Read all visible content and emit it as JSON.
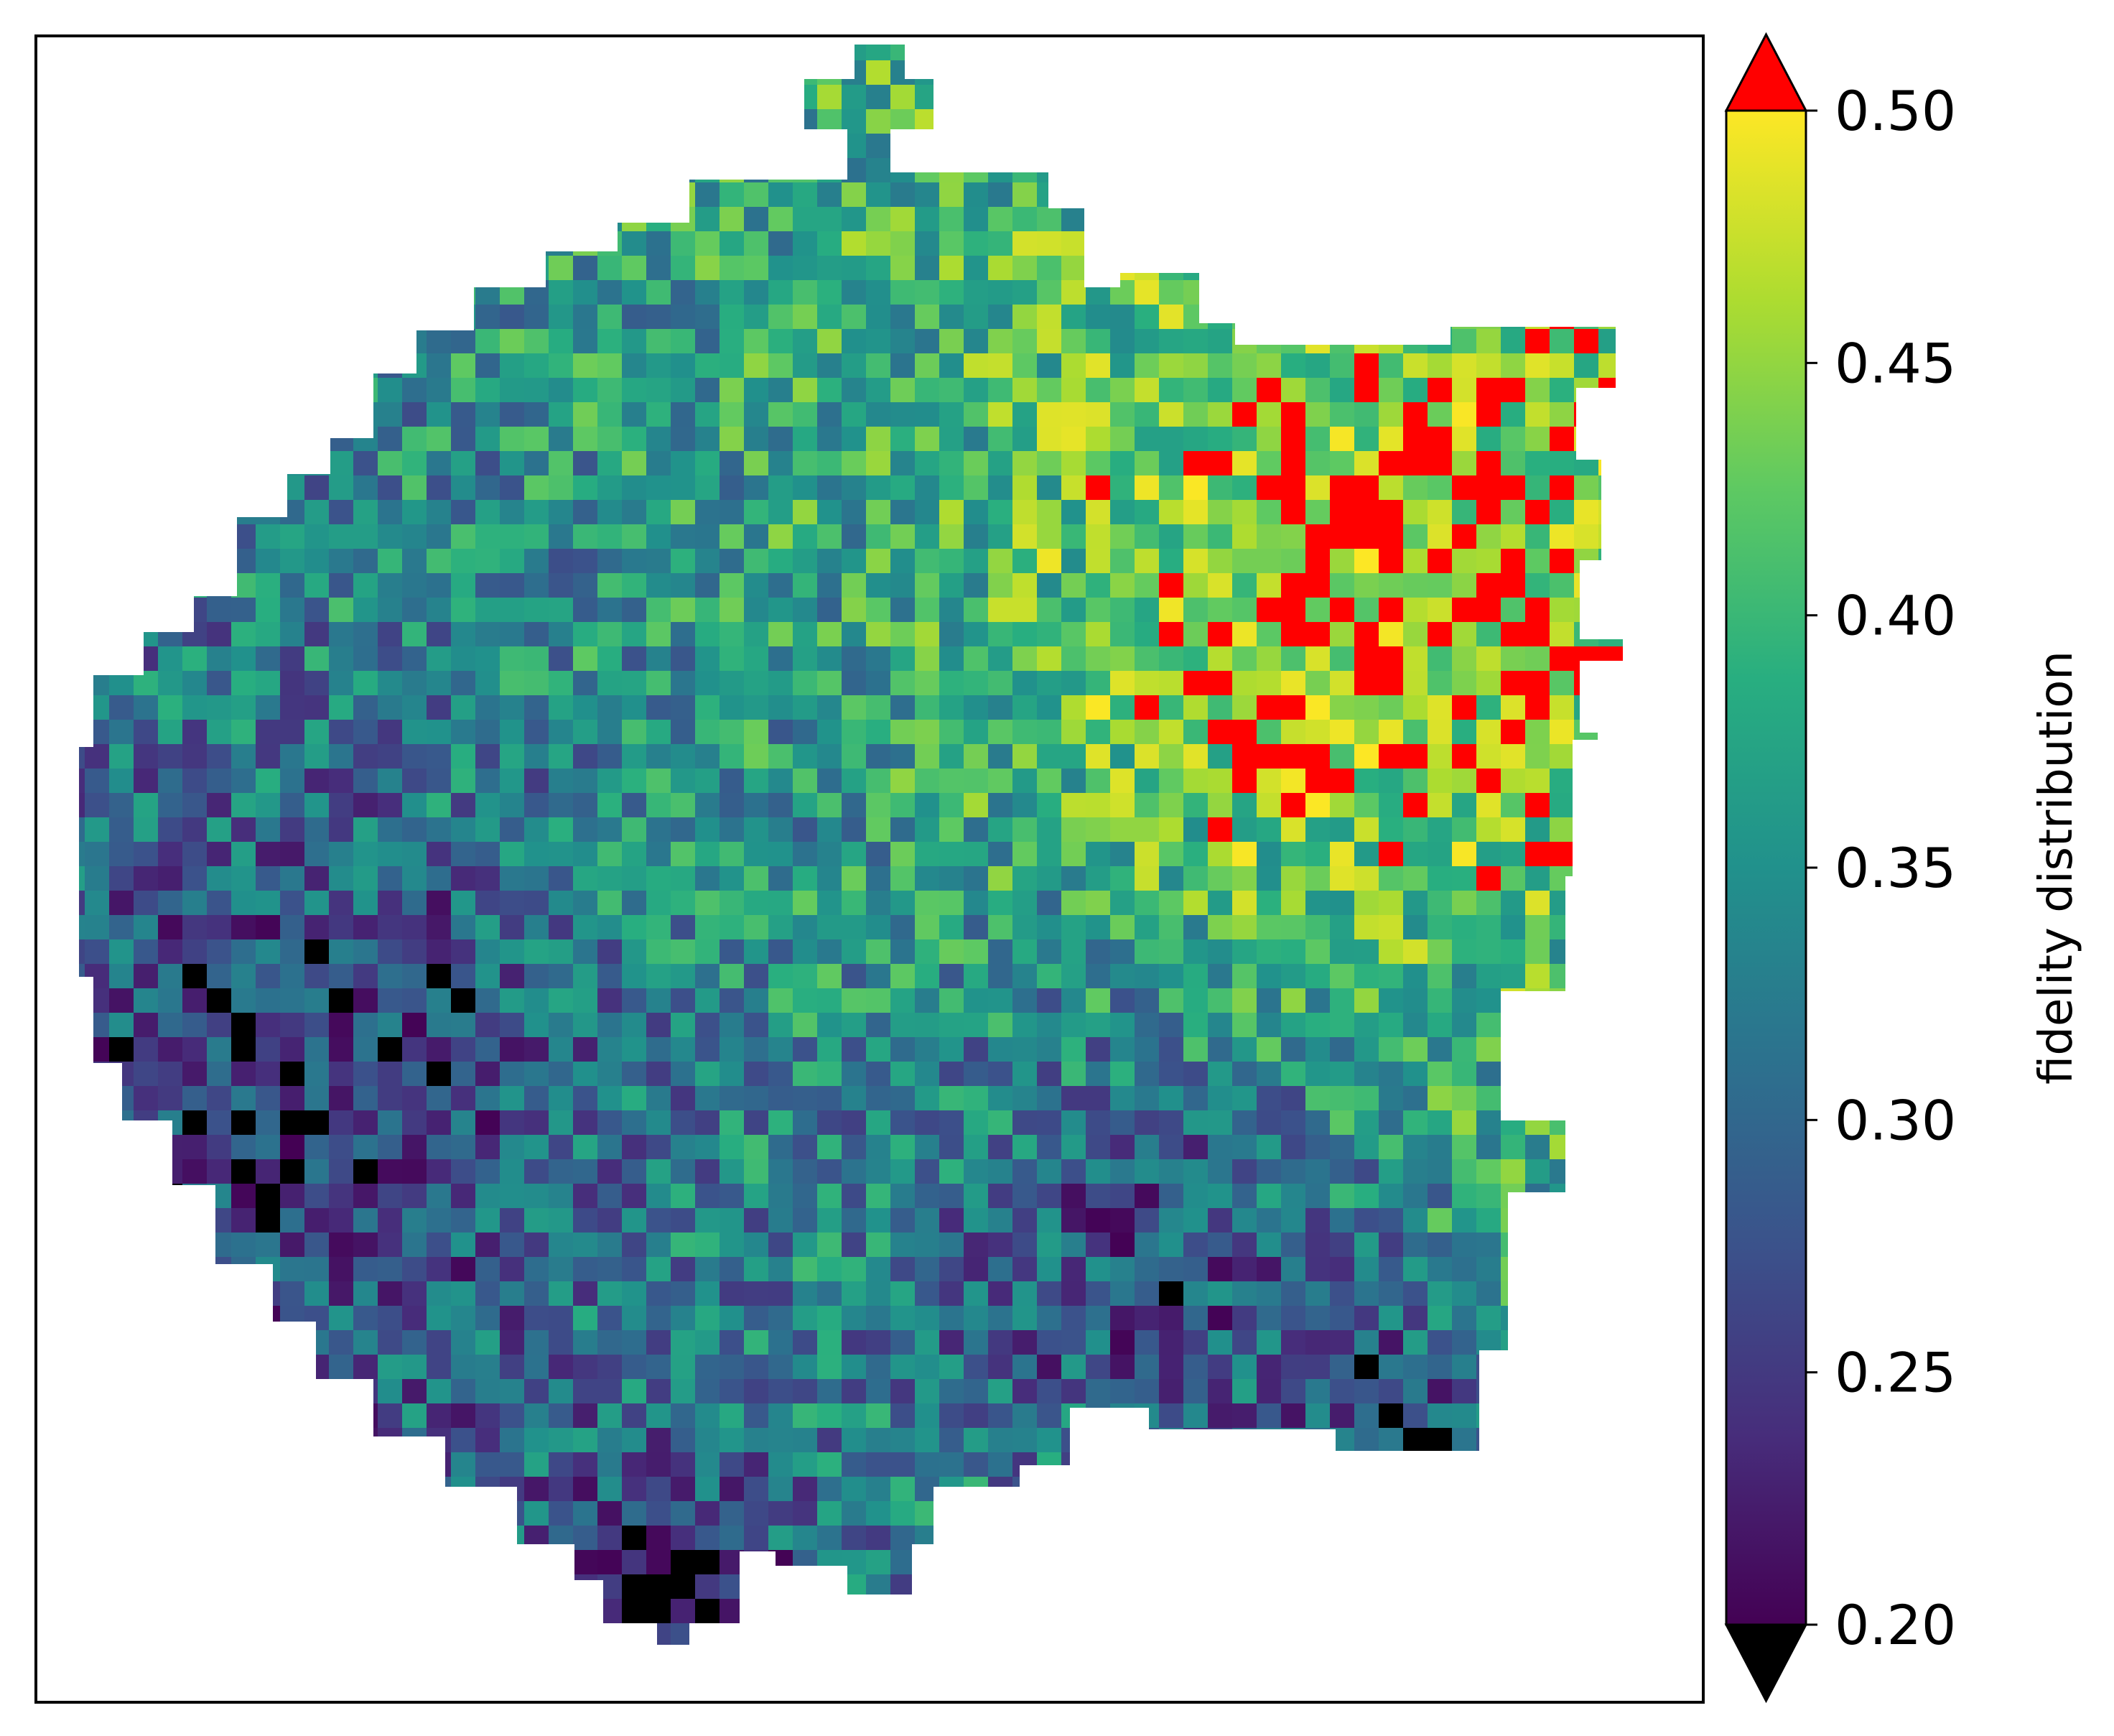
{
  "chart_data": {
    "type": "heatmap",
    "title": "",
    "xlabel": "",
    "ylabel": "",
    "colorbar": {
      "label": "fidelity distribution",
      "vmin": 0.2,
      "vmax": 0.5,
      "ticks": [
        0.2,
        0.25,
        0.3,
        0.35,
        0.4,
        0.45,
        0.5
      ],
      "tick_labels": [
        "0.20",
        "0.25",
        "0.30",
        "0.35",
        "0.40",
        "0.45",
        "0.50"
      ],
      "colormap": "viridis",
      "colormap_stops": [
        "#440154",
        "#472d7b",
        "#3b528b",
        "#2c728e",
        "#21918c",
        "#28ae80",
        "#5ec962",
        "#addc30",
        "#fde725"
      ],
      "extend": "both",
      "under_color": "#000000",
      "over_color": "#ff0000"
    },
    "grid": false,
    "note_values": "spatial fidelity field with values mostly between 0.20 and 0.50; regions below 0.20 drawn black, above 0.50 drawn red, missing cells white"
  }
}
